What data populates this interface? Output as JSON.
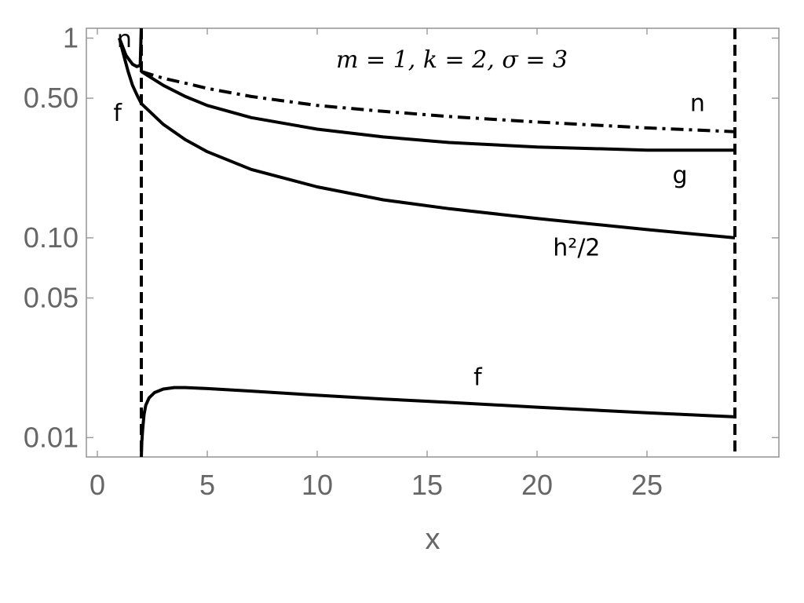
{
  "chart_data": {
    "type": "line",
    "title": "",
    "annotation": "m = 1, k = 2, σ = 3",
    "xlabel": "x",
    "ylabel": "",
    "xlim": [
      -0.5,
      31
    ],
    "ylim": [
      0.008,
      1.12
    ],
    "yscale": "log",
    "grid": false,
    "x_ticks": [
      0,
      5,
      10,
      15,
      20,
      25
    ],
    "x_tick_labels": [
      "0",
      "5",
      "10",
      "15",
      "20",
      "25"
    ],
    "y_ticks": [
      0.01,
      0.05,
      0.1,
      0.5,
      1
    ],
    "y_tick_labels": [
      "0.01",
      "0.05",
      "0.10",
      "0.50",
      "1"
    ],
    "vertical_lines": [
      {
        "x": 2,
        "style": "dashed"
      },
      {
        "x": 29,
        "style": "dashed"
      }
    ],
    "series": [
      {
        "name": "n",
        "style": "solid",
        "x": [
          1.0,
          1.3,
          1.6,
          1.8,
          1.95,
          2.0
        ],
        "y": [
          1.0,
          0.82,
          0.74,
          0.72,
          0.73,
          1.15
        ]
      },
      {
        "name": "f",
        "style": "solid",
        "x": [
          1.0,
          1.2,
          1.4,
          1.6,
          1.8,
          2.0
        ],
        "y": [
          1.0,
          0.82,
          0.68,
          0.58,
          0.52,
          0.47
        ]
      },
      {
        "name": "n",
        "style": "dashdot",
        "x": [
          2.0,
          3,
          4,
          5,
          7,
          10,
          13,
          16,
          20,
          25,
          29
        ],
        "y": [
          0.68,
          0.63,
          0.595,
          0.56,
          0.51,
          0.46,
          0.43,
          0.405,
          0.38,
          0.355,
          0.34
        ]
      },
      {
        "name": "g",
        "style": "solid",
        "x": [
          2.0,
          3,
          4,
          5,
          7,
          10,
          13,
          16,
          20,
          25,
          29
        ],
        "y": [
          0.68,
          0.58,
          0.51,
          0.46,
          0.4,
          0.35,
          0.32,
          0.3,
          0.285,
          0.275,
          0.275
        ]
      },
      {
        "name": "h²/2",
        "style": "solid",
        "x": [
          2.0,
          3,
          4,
          5,
          7,
          10,
          13,
          16,
          20,
          25,
          29
        ],
        "y": [
          0.47,
          0.37,
          0.31,
          0.27,
          0.22,
          0.18,
          0.155,
          0.14,
          0.125,
          0.11,
          0.1
        ]
      },
      {
        "name": "f",
        "style": "solid",
        "x": [
          2.0,
          2.02,
          2.06,
          2.12,
          2.2,
          2.35,
          2.6,
          3.0,
          3.5,
          4,
          5,
          7,
          10,
          13,
          16,
          20,
          25,
          29
        ],
        "y": [
          0.008,
          0.0095,
          0.011,
          0.013,
          0.0145,
          0.0158,
          0.0168,
          0.0175,
          0.0178,
          0.0178,
          0.0176,
          0.0171,
          0.0163,
          0.0156,
          0.015,
          0.0142,
          0.0133,
          0.0127
        ]
      }
    ]
  }
}
